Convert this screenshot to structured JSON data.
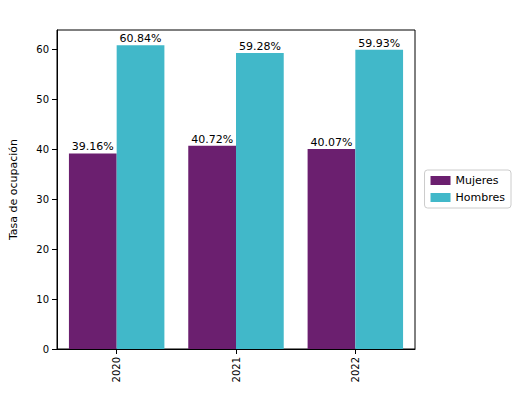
{
  "chart_data": {
    "type": "bar",
    "y_label": "Tasa de ocupación",
    "categories": [
      "2020",
      "2021",
      "2022"
    ],
    "series": [
      {
        "name": "Mujeres",
        "color": "#6b1f6f",
        "values": [
          39.16,
          40.72,
          40.07
        ],
        "value_labels": [
          "39.16%",
          "40.72%",
          "40.07%"
        ]
      },
      {
        "name": "Hombres",
        "color": "#41b8c9",
        "values": [
          60.84,
          59.28,
          59.93
        ],
        "value_labels": [
          "60.84%",
          "59.28%",
          "59.93%"
        ]
      }
    ],
    "ylim": [
      0,
      63.88
    ],
    "yticks": [
      0,
      10,
      20,
      30,
      40,
      50,
      60
    ],
    "grid": false,
    "legend": "right",
    "data_labels": true
  }
}
